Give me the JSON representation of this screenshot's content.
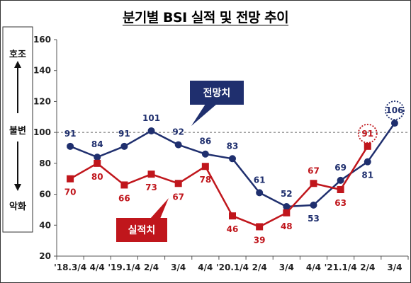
{
  "title": "분기별 BSI 실적 및 전망 추이",
  "side_labels": {
    "top": "호조",
    "middle": "불변",
    "bottom": "악화"
  },
  "colors": {
    "forecast": "#1f2f6e",
    "actual": "#c0161c",
    "reference": "#666666"
  },
  "callouts": {
    "forecast": "전망치",
    "actual": "실적치"
  },
  "chart_data": {
    "type": "line",
    "title": "분기별 BSI 실적 및 전망 추이",
    "categories": [
      "'18.3/4",
      "4/4",
      "'19.1/4",
      "2/4",
      "3/4",
      "4/4",
      "'20.1/4",
      "2/4",
      "3/4",
      "4/4",
      "'21.1/4",
      "2/4",
      "3/4"
    ],
    "yticks": [
      20,
      40,
      60,
      80,
      100,
      120,
      140,
      160
    ],
    "ylim": [
      20,
      160
    ],
    "reference_line": 100,
    "series": [
      {
        "name": "전망치",
        "marker": "circle",
        "values": [
          91,
          84,
          91,
          101,
          92,
          86,
          83,
          61,
          52,
          53,
          69,
          81,
          106
        ],
        "highlight_index": 12
      },
      {
        "name": "실적치",
        "marker": "square",
        "values": [
          70,
          80,
          66,
          73,
          67,
          78,
          46,
          39,
          48,
          67,
          63,
          91,
          null
        ],
        "highlight_index": 11
      }
    ]
  }
}
